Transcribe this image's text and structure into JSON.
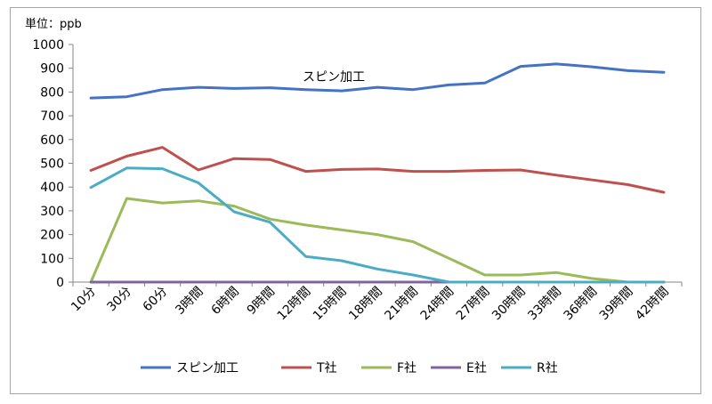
{
  "chart_data": {
    "type": "line",
    "unit_label": "単位：ppb",
    "annotation": "スピン加工",
    "categories": [
      "10分",
      "30分",
      "60分",
      "3時間",
      "6時間",
      "9時間",
      "12時間",
      "15時間",
      "18時間",
      "21時間",
      "24時間",
      "27時間",
      "30時間",
      "33時間",
      "36時間",
      "39時間",
      "42時間"
    ],
    "ylim": [
      0,
      1000
    ],
    "yticks": [
      0,
      100,
      200,
      300,
      400,
      500,
      600,
      700,
      800,
      900,
      1000
    ],
    "grid": false,
    "legend": "bottom",
    "series": [
      {
        "name": "スピン加工",
        "color": "#4472c4",
        "values": [
          775,
          780,
          810,
          820,
          815,
          818,
          810,
          805,
          820,
          810,
          830,
          838,
          908,
          918,
          906,
          890,
          883
        ]
      },
      {
        "name": "T社",
        "color": "#c0504d",
        "values": [
          470,
          530,
          567,
          472,
          520,
          516,
          466,
          474,
          476,
          466,
          466,
          470,
          472,
          450,
          430,
          410,
          378
        ]
      },
      {
        "name": "F社",
        "color": "#9bbb59",
        "values": [
          0,
          352,
          333,
          342,
          320,
          265,
          240,
          220,
          200,
          170,
          100,
          30,
          30,
          40,
          15,
          0,
          0
        ]
      },
      {
        "name": "E社",
        "color": "#8064a2",
        "values": [
          0,
          0,
          0,
          0,
          0,
          0,
          0,
          0,
          0,
          0,
          0,
          0,
          0,
          0,
          0,
          0,
          0
        ]
      },
      {
        "name": "R社",
        "color": "#4bacc6",
        "values": [
          398,
          480,
          477,
          418,
          296,
          252,
          108,
          90,
          55,
          30,
          0,
          0,
          0,
          0,
          0,
          0,
          0
        ]
      }
    ]
  }
}
